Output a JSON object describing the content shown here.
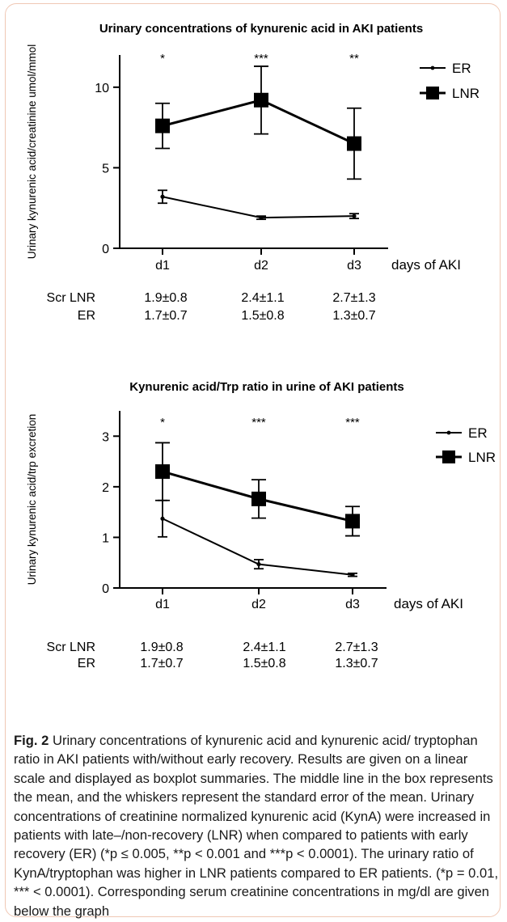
{
  "chart_data": [
    {
      "type": "line",
      "title": "Urinary concentrations of kynurenic acid in AKI patients",
      "ylabel": "Urinary kynurenic acid/creatinine umol/mmol",
      "xlabel": "days of AKI",
      "categories": [
        "d1",
        "d2",
        "d3"
      ],
      "ylim": [
        0,
        12
      ],
      "yticks": [
        0,
        5,
        10
      ],
      "grid": false,
      "legend": "top-right",
      "significance": [
        "*",
        "***",
        "**"
      ],
      "series": [
        {
          "name": "ER",
          "marker": "dot",
          "values": [
            3.2,
            1.9,
            2.0
          ],
          "errors": [
            0.4,
            0.1,
            0.15
          ]
        },
        {
          "name": "LNR",
          "marker": "square",
          "values": [
            7.6,
            9.2,
            6.5
          ],
          "errors": [
            1.4,
            2.1,
            2.2
          ]
        }
      ],
      "scr": {
        "rows": [
          {
            "label": "Scr LNR",
            "values": [
              "1.9±0.8",
              "2.4±1.1",
              "2.7±1.3"
            ]
          },
          {
            "label": "ER",
            "values": [
              "1.7±0.7",
              "1.5±0.8",
              "1.3±0.7"
            ]
          }
        ]
      }
    },
    {
      "type": "line",
      "title": "Kynurenic acid/Trp ratio in urine of AKI patients",
      "ylabel": "Urinary kynurenic acid/trp excretion",
      "xlabel": "days of AKI",
      "categories": [
        "d1",
        "d2",
        "d3"
      ],
      "ylim": [
        0,
        3.5
      ],
      "yticks": [
        0,
        1,
        2,
        3
      ],
      "grid": false,
      "legend": "top-right",
      "significance": [
        "*",
        "***",
        "***"
      ],
      "series": [
        {
          "name": "ER",
          "marker": "dot",
          "values": [
            1.37,
            0.47,
            0.26
          ],
          "errors": [
            0.36,
            0.09,
            0.03
          ]
        },
        {
          "name": "LNR",
          "marker": "square",
          "values": [
            2.3,
            1.76,
            1.32
          ],
          "errors": [
            0.57,
            0.38,
            0.29
          ]
        }
      ],
      "scr": {
        "rows": [
          {
            "label": "Scr LNR",
            "values": [
              "1.9±0.8",
              "2.4±1.1",
              "2.7±1.3"
            ]
          },
          {
            "label": "ER",
            "values": [
              "1.7±0.7",
              "1.5±0.8",
              "1.3±0.7"
            ]
          }
        ]
      }
    }
  ],
  "caption": {
    "label": "Fig. 2",
    "text": " Urinary concentrations of kynurenic acid and kynurenic acid/ tryptophan ratio in AKI patients with/without early recovery. Results are given on a linear scale and displayed as boxplot summaries. The middle line in the box represents the mean, and the whiskers represent the standard error of the mean. Urinary concentrations of creatinine normalized kynurenic acid (KynA) were increased in patients with late–/non-recovery (LNR) when compared to patients with early recovery (ER) (*p ≤ 0.005, **p < 0.001 and ***p < 0.0001). The urinary ratio of KynA/tryptophan was higher in LNR patients compared to ER patients. (*p = 0.01, *** < 0.0001). Corresponding serum creatinine concentrations in mg/dl are given below the graph"
  }
}
